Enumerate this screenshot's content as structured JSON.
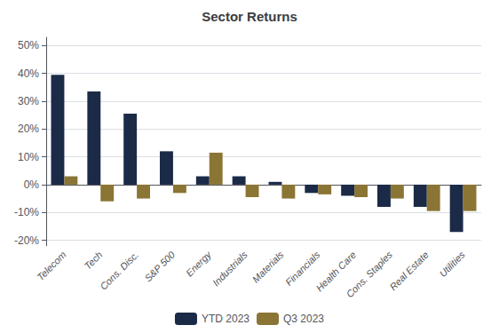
{
  "chart_data": {
    "type": "bar",
    "title": "Sector Returns",
    "categories": [
      "Telecom",
      "Tech",
      "Cons. Disc.",
      "S&P 500",
      "Energy",
      "Industrials",
      "Materials",
      "Financials",
      "Health Care",
      "Cons. Staples",
      "Real Estate",
      "Utilities"
    ],
    "series": [
      {
        "name": "YTD 2023",
        "color": "#1b2a47",
        "values": [
          39.5,
          33.5,
          25.5,
          12.0,
          3.0,
          3.0,
          1.0,
          -3.0,
          -4.0,
          -8.0,
          -8.0,
          -17.0
        ]
      },
      {
        "name": "Q3 2023",
        "color": "#8b7535",
        "values": [
          3.0,
          -6.0,
          -5.0,
          -3.0,
          11.5,
          -4.5,
          -5.0,
          -3.5,
          -4.5,
          -5.0,
          -9.5,
          -9.5
        ]
      }
    ],
    "ylim": [
      -22,
      53
    ],
    "yticks": [
      {
        "value": -20,
        "label": "-20%"
      },
      {
        "value": -10,
        "label": "-10%"
      },
      {
        "value": 0,
        "label": "0%"
      },
      {
        "value": 10,
        "label": "10%"
      },
      {
        "value": 20,
        "label": "20%"
      },
      {
        "value": 30,
        "label": "30%"
      },
      {
        "value": 40,
        "label": "40%"
      },
      {
        "value": 50,
        "label": "50%"
      }
    ],
    "grid": true,
    "legend": "bottom"
  }
}
